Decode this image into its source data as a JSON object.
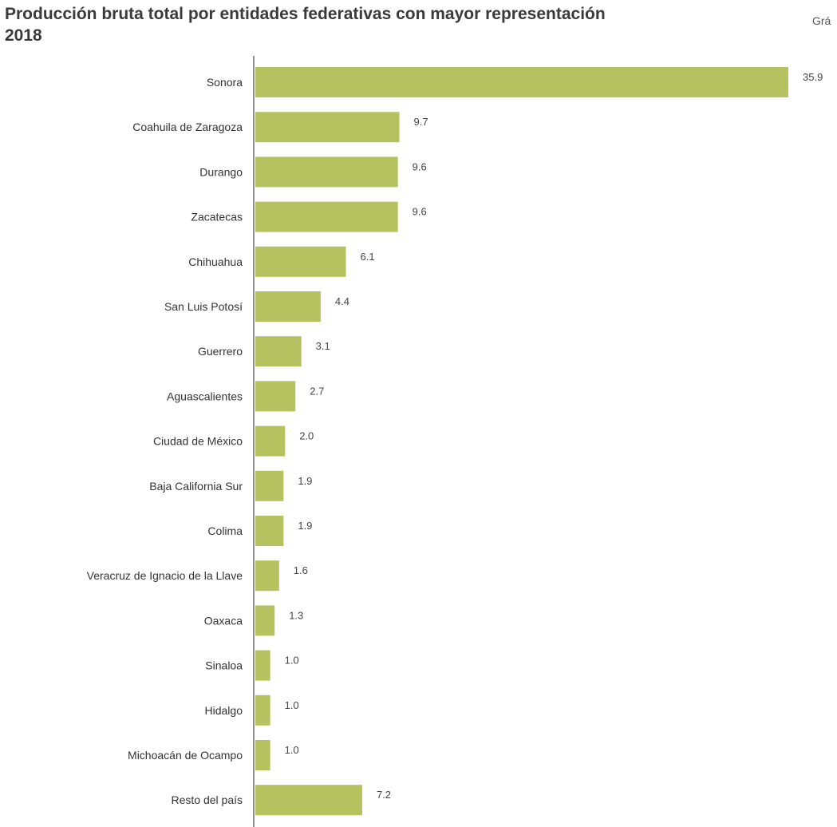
{
  "title_line1": "Producción bruta total por entidades federativas con mayor representación",
  "title_line2": "2018",
  "corner_text": "Grá",
  "colors": {
    "bar": "#b5c25f",
    "axis": "#6b6b6b",
    "text": "#333333"
  },
  "chart_data": {
    "type": "bar",
    "orientation": "horizontal",
    "title": "Producción bruta total por entidades federativas con mayor representación 2018",
    "categories": [
      "Sonora",
      "Coahuila de Zaragoza",
      "Durango",
      "Zacatecas",
      "Chihuahua",
      "San Luis Potosí",
      "Guerrero",
      "Aguascalientes",
      "Ciudad de México",
      "Baja California Sur",
      "Colima",
      "Veracruz de Ignacio de la Llave",
      "Oaxaca",
      "Sinaloa",
      "Hidalgo",
      "Michoacán de Ocampo",
      "Resto del país"
    ],
    "values": [
      35.9,
      9.7,
      9.6,
      9.6,
      6.1,
      4.4,
      3.1,
      2.7,
      2.0,
      1.9,
      1.9,
      1.6,
      1.3,
      1.0,
      1.0,
      1.0,
      7.2
    ],
    "value_labels": [
      "35.9",
      "9.7",
      "9.6",
      "9.6",
      "6.1",
      "4.4",
      "3.1",
      "2.7",
      "2.0",
      "1.9",
      "1.9",
      "1.6",
      "1.3",
      "1.0",
      "1.0",
      "1.0",
      "7.2"
    ],
    "xlim": [
      0,
      35.9
    ],
    "grid": false,
    "legend": "none"
  }
}
